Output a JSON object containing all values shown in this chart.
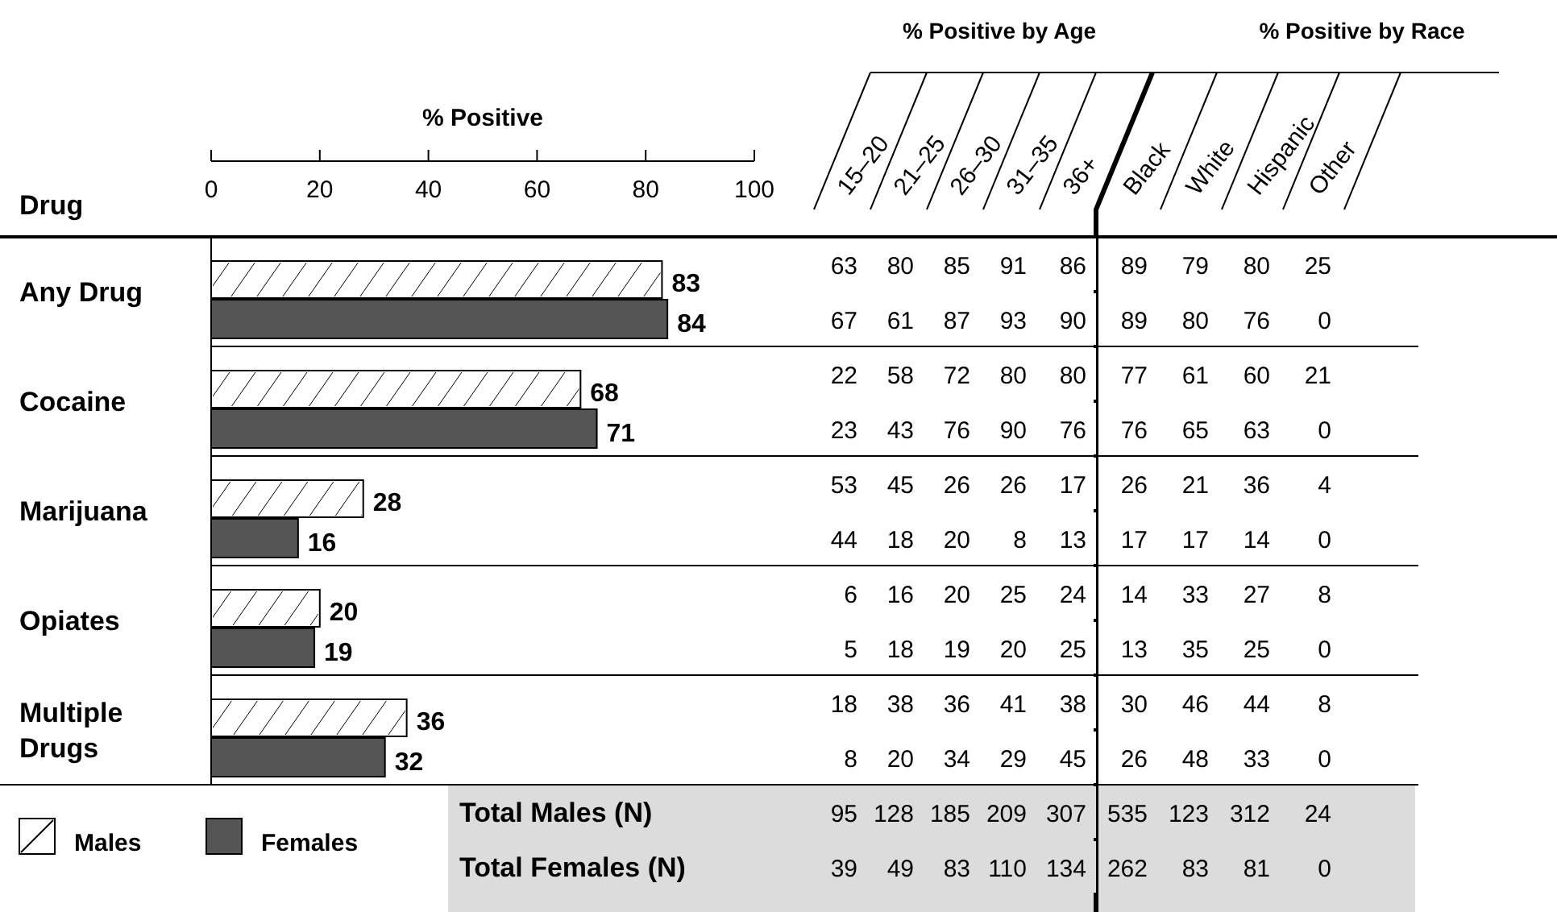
{
  "chart_data": [
    {
      "type": "bar",
      "orientation": "horizontal",
      "title": "% Positive",
      "ylabel": "Drug",
      "categories": [
        "Any Drug",
        "Cocaine",
        "Marijuana",
        "Opiates",
        "Multiple Drugs"
      ],
      "series": [
        {
          "name": "Males",
          "color": "#ffffff",
          "values": [
            83,
            68,
            28,
            20,
            36
          ]
        },
        {
          "name": "Females",
          "color": "#555555",
          "values": [
            84,
            71,
            16,
            19,
            32
          ]
        }
      ],
      "xlim": [
        0,
        100
      ],
      "xticks": [
        0,
        20,
        40,
        60,
        80,
        100
      ],
      "data_labels": true,
      "legend": "bottom left"
    },
    {
      "type": "heatmap",
      "data_labels": true,
      "annotations": [
        "% Positive by Age",
        "% Positive by Race"
      ],
      "categories": [
        "15–20",
        "21–25",
        "26–30",
        "31–35",
        "36+",
        "Black",
        "White",
        "Hispanic",
        "Other"
      ],
      "y_categories": [
        null,
        null,
        null,
        null,
        null,
        null,
        null,
        null,
        null,
        null,
        "Total Males (N)",
        "Total Females (N)"
      ],
      "cells": [
        [
          63,
          80,
          85,
          91,
          86,
          89,
          79,
          80,
          25
        ],
        [
          67,
          61,
          87,
          93,
          90,
          89,
          80,
          76,
          0
        ],
        [
          22,
          58,
          72,
          80,
          80,
          77,
          61,
          60,
          21
        ],
        [
          23,
          43,
          76,
          90,
          76,
          76,
          65,
          63,
          0
        ],
        [
          53,
          45,
          26,
          26,
          17,
          26,
          21,
          36,
          4
        ],
        [
          44,
          18,
          20,
          8,
          13,
          17,
          17,
          14,
          0
        ],
        [
          6,
          16,
          20,
          25,
          24,
          14,
          33,
          27,
          8
        ],
        [
          5,
          18,
          19,
          20,
          25,
          13,
          35,
          25,
          0
        ],
        [
          18,
          38,
          36,
          41,
          38,
          30,
          46,
          44,
          8
        ],
        [
          8,
          20,
          34,
          29,
          45,
          26,
          48,
          33,
          0
        ],
        [
          95,
          128,
          185,
          209,
          307,
          535,
          123,
          312,
          24
        ],
        [
          39,
          49,
          83,
          110,
          134,
          262,
          83,
          81,
          0
        ]
      ]
    }
  ]
}
